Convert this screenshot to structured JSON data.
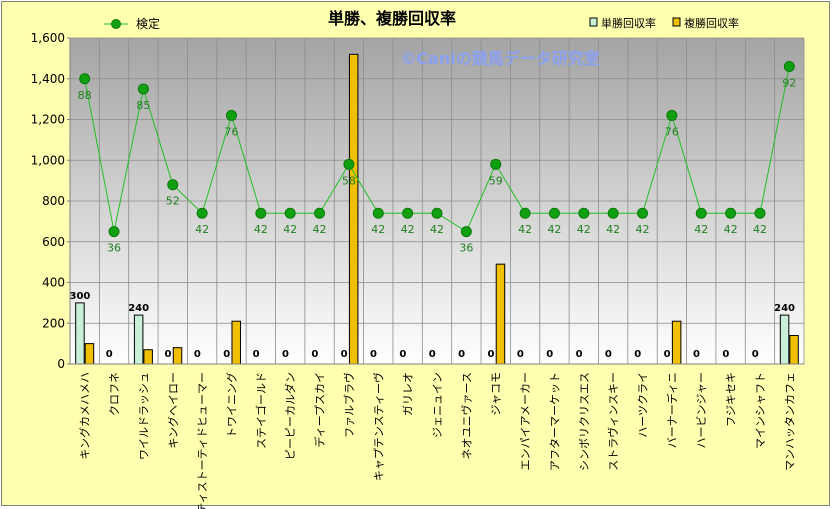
{
  "chart_data": {
    "type": "bar+line",
    "title": "単勝、複勝回収率",
    "watermark": "©Caniの競馬データ研究室",
    "categories": [
      "キングカメハメハ",
      "クロフネ",
      "ワイルドラッシュ",
      "キングヘイロー",
      "ティストーティドヒューマー",
      "トワイニング",
      "ステイゴールド",
      "ピーピーカルダン",
      "ディープスカイ",
      "ファルブラヴ",
      "キャプテンスティーヴ",
      "ガリレオ",
      "ジェニュイン",
      "ネオユニヴァース",
      "ジャコモ",
      "エンパイアメーカー",
      "アフターマーケット",
      "シンボリクリスエス",
      "ストラヴィンスキー",
      "ハーツクライ",
      "バーナーディニ",
      "ハービンジャー",
      "フジキセキ",
      "マインシャフト",
      "マンハッタンカフェ"
    ],
    "y_axis": {
      "min": 0,
      "max": 1600,
      "step": 200,
      "tick_labels": [
        "0",
        "200",
        "400",
        "600",
        "800",
        "1,000",
        "1,200",
        "1,400",
        "1,600"
      ]
    },
    "grid": true,
    "legend": {
      "placement": "top"
    },
    "series": [
      {
        "name": "単勝回収率",
        "type": "bar",
        "color": "#c8f0d8",
        "values": [
          300,
          0,
          240,
          0,
          0,
          0,
          0,
          0,
          0,
          0,
          0,
          0,
          0,
          0,
          0,
          0,
          0,
          0,
          0,
          0,
          0,
          0,
          0,
          0,
          240
        ],
        "labels": [
          "300",
          "0",
          "240",
          "0",
          "0",
          "0",
          "0",
          "0",
          "0",
          "0",
          "0",
          "0",
          "0",
          "0",
          "0",
          "0",
          "0",
          "0",
          "0",
          "0",
          "0",
          "0",
          "0",
          "0",
          "240"
        ]
      },
      {
        "name": "複勝回収率",
        "type": "bar",
        "color": "#f0c000",
        "values": [
          100,
          0,
          70,
          80,
          0,
          210,
          0,
          0,
          0,
          1520,
          0,
          0,
          0,
          0,
          490,
          0,
          0,
          0,
          0,
          0,
          210,
          0,
          0,
          0,
          140
        ]
      },
      {
        "name": "検定",
        "type": "line",
        "color": "#20c020",
        "values": [
          1400,
          650,
          1350,
          880,
          740,
          1220,
          740,
          740,
          740,
          980,
          740,
          740,
          740,
          650,
          980,
          740,
          740,
          740,
          740,
          740,
          1220,
          740,
          740,
          740,
          1460
        ],
        "labels": [
          "88",
          "36",
          "85",
          "52",
          "42",
          "76",
          "42",
          "42",
          "42",
          "58",
          "42",
          "42",
          "42",
          "36",
          "59",
          "42",
          "42",
          "42",
          "42",
          "42",
          "76",
          "42",
          "42",
          "42",
          "92"
        ]
      }
    ]
  }
}
